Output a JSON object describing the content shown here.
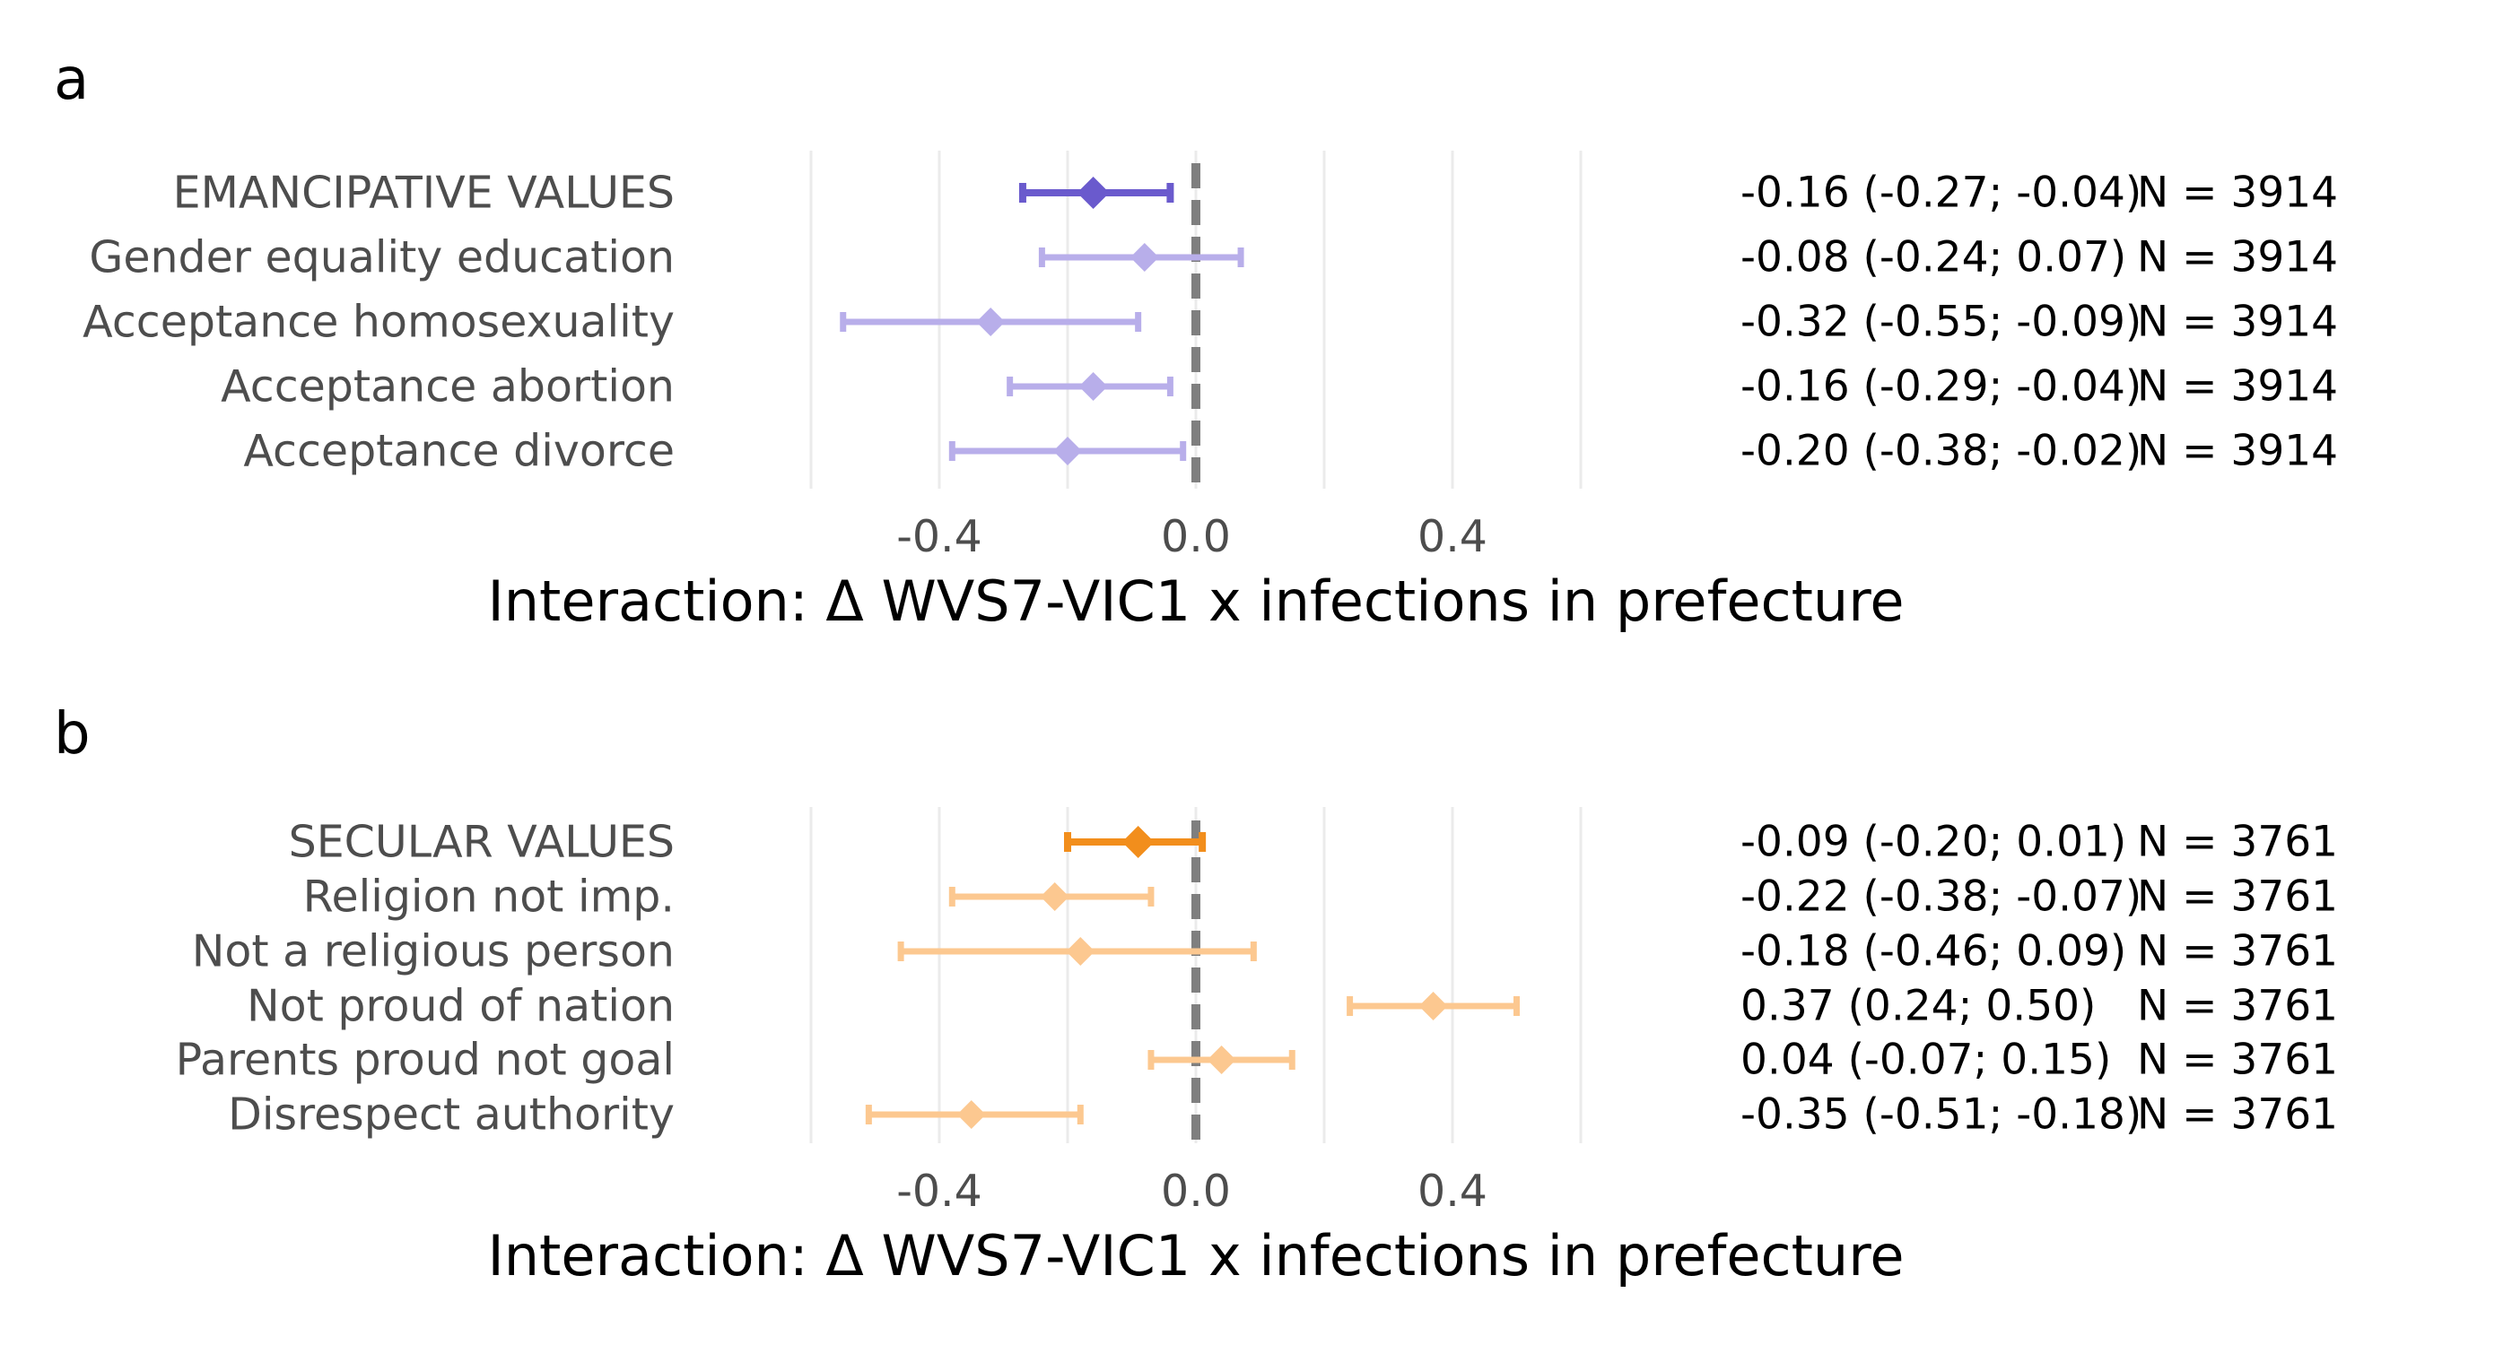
{
  "chart_data": [
    {
      "type": "forest",
      "panel": "a",
      "xlabel": "Interaction: Δ WVS7-VIC1 x infections in prefecture",
      "xlim": [
        -0.75,
        0.75
      ],
      "xticks": [
        -0.4,
        0.0,
        0.4
      ],
      "xtick_labels": [
        "-0.4",
        "0.0",
        "0.4"
      ],
      "zero_line": 0.0,
      "grid": "vertical major and minor",
      "colors": {
        "summary": "#6a5acd",
        "item": "#b8aeea"
      },
      "rows": [
        {
          "label": "EMANCIPATIVE VALUES",
          "estimate": -0.16,
          "lower": -0.27,
          "upper": -0.04,
          "n": 3914,
          "ci_text": "-0.16 (-0.27; -0.04)",
          "n_text": "N = 3914",
          "summary": true
        },
        {
          "label": "Gender equality education",
          "estimate": -0.08,
          "lower": -0.24,
          "upper": 0.07,
          "n": 3914,
          "ci_text": "-0.08 (-0.24; 0.07)",
          "n_text": "N = 3914",
          "summary": false
        },
        {
          "label": "Acceptance homosexuality",
          "estimate": -0.32,
          "lower": -0.55,
          "upper": -0.09,
          "n": 3914,
          "ci_text": "-0.32 (-0.55; -0.09)",
          "n_text": "N = 3914",
          "summary": false
        },
        {
          "label": "Acceptance abortion",
          "estimate": -0.16,
          "lower": -0.29,
          "upper": -0.04,
          "n": 3914,
          "ci_text": "-0.16 (-0.29; -0.04)",
          "n_text": "N = 3914",
          "summary": false
        },
        {
          "label": "Acceptance divorce",
          "estimate": -0.2,
          "lower": -0.38,
          "upper": -0.02,
          "n": 3914,
          "ci_text": "-0.20 (-0.38; -0.02)",
          "n_text": "N = 3914",
          "summary": false
        }
      ]
    },
    {
      "type": "forest",
      "panel": "b",
      "xlabel": "Interaction: Δ WVS7-VIC1 x infections in prefecture",
      "xlim": [
        -0.75,
        0.75
      ],
      "xticks": [
        -0.4,
        0.0,
        0.4
      ],
      "xtick_labels": [
        "-0.4",
        "0.0",
        "0.4"
      ],
      "zero_line": 0.0,
      "grid": "vertical major and minor",
      "colors": {
        "summary": "#f28e1c",
        "item": "#fcc890"
      },
      "rows": [
        {
          "label": "SECULAR VALUES",
          "estimate": -0.09,
          "lower": -0.2,
          "upper": 0.01,
          "n": 3761,
          "ci_text": "-0.09 (-0.20; 0.01)",
          "n_text": "N = 3761",
          "summary": true
        },
        {
          "label": "Religion not imp.",
          "estimate": -0.22,
          "lower": -0.38,
          "upper": -0.07,
          "n": 3761,
          "ci_text": "-0.22 (-0.38; -0.07)",
          "n_text": "N = 3761",
          "summary": false
        },
        {
          "label": "Not a religious person",
          "estimate": -0.18,
          "lower": -0.46,
          "upper": 0.09,
          "n": 3761,
          "ci_text": "-0.18 (-0.46; 0.09)",
          "n_text": "N = 3761",
          "summary": false
        },
        {
          "label": "Not proud of nation",
          "estimate": 0.37,
          "lower": 0.24,
          "upper": 0.5,
          "n": 3761,
          "ci_text": "0.37 (0.24; 0.50)",
          "n_text": "N = 3761",
          "summary": false
        },
        {
          "label": "Parents proud not goal",
          "estimate": 0.04,
          "lower": -0.07,
          "upper": 0.15,
          "n": 3761,
          "ci_text": "0.04 (-0.07; 0.15)",
          "n_text": "N = 3761",
          "summary": false
        },
        {
          "label": "Disrespect authority",
          "estimate": -0.35,
          "lower": -0.51,
          "upper": -0.18,
          "n": 3761,
          "ci_text": "-0.35 (-0.51; -0.18)",
          "n_text": "N = 3761",
          "summary": false
        }
      ]
    }
  ]
}
